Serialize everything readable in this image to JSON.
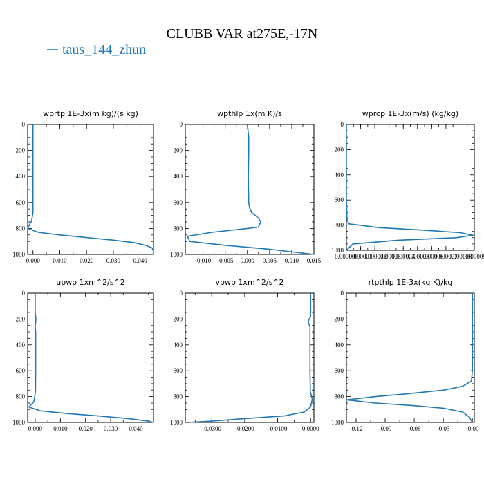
{
  "figure_title": "CLUBB VAR at275E,-17N",
  "legend": {
    "label": "taus_144_zhun",
    "color": "#1f77b4"
  },
  "chart_data": [
    {
      "type": "line",
      "title": "wprtp  1E-3x(m kg)/(s kg)",
      "xlim": [
        -0.002,
        0.045
      ],
      "ylim": [
        1000,
        0
      ],
      "xticks": [
        0.0,
        0.01,
        0.02,
        0.03,
        0.04
      ],
      "xtick_labels": [
        "0.000",
        "0.010",
        "0.020",
        "0.030",
        "0.040"
      ],
      "yticks": [
        0,
        200,
        400,
        600,
        800,
        1000
      ],
      "ytick_labels": [
        "0",
        "200",
        "400",
        "600",
        "800",
        "1000"
      ],
      "series": [
        {
          "x": [
            0.0,
            0.0,
            0.0,
            0.0,
            0.0,
            -0.0005,
            -0.002,
            0.002,
            0.01,
            0.02,
            0.03,
            0.038,
            0.042,
            0.0445,
            0.045
          ],
          "y": [
            0,
            200,
            400,
            600,
            680,
            740,
            800,
            830,
            850,
            870,
            890,
            910,
            930,
            950,
            980
          ]
        }
      ]
    },
    {
      "type": "line",
      "title": "wpthlp  1x(m K)/s",
      "xlim": [
        -0.014,
        0.015
      ],
      "ylim": [
        1000,
        0
      ],
      "xticks": [
        -0.01,
        -0.005,
        0.0,
        0.005,
        0.01,
        0.015
      ],
      "xtick_labels": [
        "-0.010",
        "-0.005",
        "0.000",
        "0.005",
        "0.010",
        "0.015"
      ],
      "yticks": [
        0,
        200,
        400,
        600,
        800,
        1000
      ],
      "ytick_labels": [
        "0",
        "200",
        "400",
        "600",
        "800",
        "1000"
      ],
      "series": [
        {
          "x": [
            0.0,
            0.0003,
            0.0003,
            0.0002,
            0.0003,
            0.0005,
            0.001,
            0.0025,
            0.003,
            0.0025,
            0.0,
            -0.008,
            -0.0135,
            -0.013,
            -0.005,
            0.005,
            0.015
          ],
          "y": [
            0,
            100,
            200,
            400,
            600,
            640,
            680,
            720,
            750,
            790,
            800,
            830,
            860,
            900,
            930,
            960,
            1000
          ]
        }
      ]
    },
    {
      "type": "line",
      "title": "wprcp  1E-3x(m/s) (kg/kg)",
      "xlim": [
        0.0,
        9.9e-06
      ],
      "ylim": [
        1000,
        0
      ],
      "xticks": [
        0.0,
        1.1e-06,
        2.2e-06,
        3.3e-06,
        4.4e-06,
        5.5e-06,
        6.6e-06,
        7.7e-06,
        8.8e-06,
        9.9e-06
      ],
      "xtick_labels": [
        "0.000000",
        "0.000001",
        "0.000002",
        "0.000003",
        "0.000004",
        "0.000005",
        "0.000006",
        "0.000007",
        "0.000008",
        "0.000009"
      ],
      "yticks": [
        0,
        200,
        400,
        600,
        800,
        1000
      ],
      "ytick_labels": [
        "0",
        "200",
        "400",
        "600",
        "800",
        "1000"
      ],
      "series": [
        {
          "x": [
            0.0,
            0.0,
            0.0,
            0.0,
            5e-08,
            2e-07,
            2.5e-06,
            6e-06,
            8.8e-06,
            9.8e-06,
            8.5e-06,
            4e-06,
            5e-07,
            0.0
          ],
          "y": [
            0,
            200,
            400,
            600,
            760,
            790,
            820,
            840,
            860,
            880,
            900,
            920,
            950,
            1000
          ]
        }
      ]
    },
    {
      "type": "line",
      "title": "upwp  1xm^2/s^2",
      "xlim": [
        -0.003,
        0.047
      ],
      "ylim": [
        1000,
        0
      ],
      "xticks": [
        0.0,
        0.01,
        0.02,
        0.03,
        0.04
      ],
      "xtick_labels": [
        "0.000",
        "0.010",
        "0.020",
        "0.030",
        "0.040"
      ],
      "yticks": [
        0,
        200,
        400,
        600,
        800,
        1000
      ],
      "ytick_labels": [
        "0",
        "200",
        "400",
        "600",
        "800",
        "1000"
      ],
      "series": [
        {
          "x": [
            0.0,
            0.0,
            0.0003,
            0.0,
            0.0002,
            0.0002,
            0.0001,
            -0.0005,
            -0.0025,
            0.002,
            0.012,
            0.025,
            0.037,
            0.045,
            0.047
          ],
          "y": [
            0,
            150,
            200,
            260,
            300,
            600,
            760,
            840,
            880,
            910,
            930,
            950,
            970,
            990,
            1000
          ]
        }
      ]
    },
    {
      "type": "line",
      "title": "vpwp  1xm^2/s^2",
      "xlim": [
        -0.038,
        0.001
      ],
      "ylim": [
        1000,
        0
      ],
      "xticks": [
        -0.03,
        -0.02,
        -0.01,
        0.0
      ],
      "xtick_labels": [
        "-0.0300",
        "-0.0200",
        "-0.0100",
        "0.0000"
      ],
      "yticks": [
        0,
        200,
        400,
        600,
        800,
        1000
      ],
      "ytick_labels": [
        "0",
        "200",
        "400",
        "600",
        "800",
        "1000"
      ],
      "series": [
        {
          "x": [
            0.0,
            0.0,
            -0.0008,
            -0.0002,
            -0.0002,
            -0.0001,
            0.0005,
            0.0,
            -0.002,
            -0.008,
            -0.02,
            -0.03,
            -0.037
          ],
          "y": [
            0,
            180,
            220,
            260,
            600,
            760,
            820,
            880,
            920,
            950,
            970,
            990,
            1000
          ]
        }
      ]
    },
    {
      "type": "line",
      "title": "rtpthlp  1E-3x(kg K)/kg",
      "xlim": [
        -0.13,
        0.002
      ],
      "ylim": [
        1000,
        0
      ],
      "xticks": [
        -0.12,
        -0.09,
        -0.06,
        -0.03,
        0.0
      ],
      "xtick_labels": [
        "-0.12",
        "-0.09",
        "-0.06",
        "-0.03",
        "-0.00"
      ],
      "yticks": [
        0,
        200,
        400,
        600,
        800,
        1000
      ],
      "ytick_labels": [
        "0",
        "200",
        "400",
        "600",
        "800",
        "1000"
      ],
      "series": [
        {
          "x": [
            0.0,
            0.0,
            0.0,
            -0.001,
            -0.01,
            -0.03,
            -0.07,
            -0.1,
            -0.13,
            -0.1,
            -0.06,
            -0.03,
            -0.01,
            -0.003,
            0.0
          ],
          "y": [
            0,
            300,
            600,
            680,
            720,
            750,
            780,
            800,
            825,
            850,
            870,
            890,
            920,
            960,
            1000
          ]
        }
      ]
    }
  ]
}
